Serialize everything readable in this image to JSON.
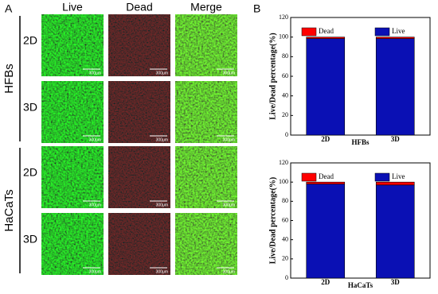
{
  "panel_a": {
    "label": "A",
    "columns": [
      "Live",
      "Dead",
      "Merge"
    ],
    "groups": [
      {
        "name": "HFBs",
        "rows": [
          "2D",
          "3D"
        ]
      },
      {
        "name": "HaCaTs",
        "rows": [
          "2D",
          "3D"
        ]
      }
    ],
    "scale_bar": "300μm"
  },
  "panel_b": {
    "label": "B"
  },
  "chart_data": [
    {
      "type": "stacked_bar",
      "xlabel": "HFBs",
      "ylabel": "Live/Dead percentage(%)",
      "categories": [
        "2D",
        "3D"
      ],
      "series": [
        {
          "name": "Live",
          "color": "#0a10b4",
          "values": [
            98.5,
            98.5
          ]
        },
        {
          "name": "Dead",
          "color": "#ff0000",
          "values": [
            1.5,
            1.5
          ]
        }
      ],
      "ylim": [
        0,
        120
      ],
      "yticks": [
        0,
        20,
        40,
        60,
        80,
        100,
        120
      ]
    },
    {
      "type": "stacked_bar",
      "xlabel": "HaCaTs",
      "ylabel": "Live/Dead percentage(%)",
      "categories": [
        "2D",
        "3D"
      ],
      "series": [
        {
          "name": "Live",
          "color": "#0a10b4",
          "values": [
            98,
            97
          ]
        },
        {
          "name": "Dead",
          "color": "#ff0000",
          "values": [
            2,
            3
          ]
        }
      ],
      "ylim": [
        0,
        120
      ],
      "yticks": [
        0,
        20,
        40,
        60,
        80,
        100,
        120
      ]
    }
  ]
}
